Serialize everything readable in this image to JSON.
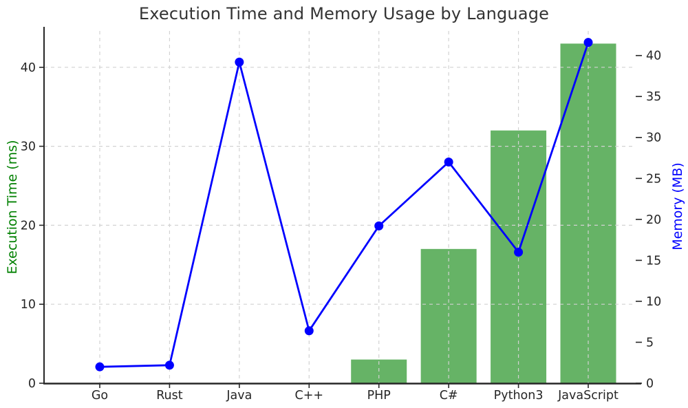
{
  "title": "Execution Time and Memory Usage by Language",
  "chart_data": {
    "type": "bar",
    "subtype": "combo-bar-line-dual-axis",
    "categories": [
      "Go",
      "Rust",
      "Java",
      "C++",
      "PHP",
      "C#",
      "Python3",
      "JavaScript"
    ],
    "series": [
      {
        "name": "Execution Time (ms)",
        "type": "bar",
        "axis": "left",
        "color": "#66b366",
        "values": [
          0,
          0,
          0,
          0,
          3,
          17,
          32,
          43
        ]
      },
      {
        "name": "Memory (MB)",
        "type": "line",
        "axis": "right",
        "color": "#0000ff",
        "marker": "circle",
        "values": [
          2,
          2.2,
          39.2,
          6.4,
          19.2,
          27,
          16,
          41.6
        ]
      }
    ],
    "left_axis": {
      "label": "Execution Time (ms)",
      "color": "#008000",
      "ticks": [
        0,
        10,
        20,
        30,
        40
      ],
      "range": [
        0,
        44.6
      ]
    },
    "right_axis": {
      "label": "Memory (MB)",
      "color": "#0000ff",
      "ticks": [
        0,
        5,
        10,
        15,
        20,
        25,
        30,
        35,
        40
      ],
      "range": [
        0,
        43
      ]
    },
    "title": "Execution Time and Memory Usage by Language",
    "grid": {
      "show": true,
      "color": "#d2d2d2",
      "style": "dashed"
    },
    "legend_position": "none",
    "tick_color": "#262626",
    "spine_color": "#262626",
    "background": "#ffffff"
  }
}
